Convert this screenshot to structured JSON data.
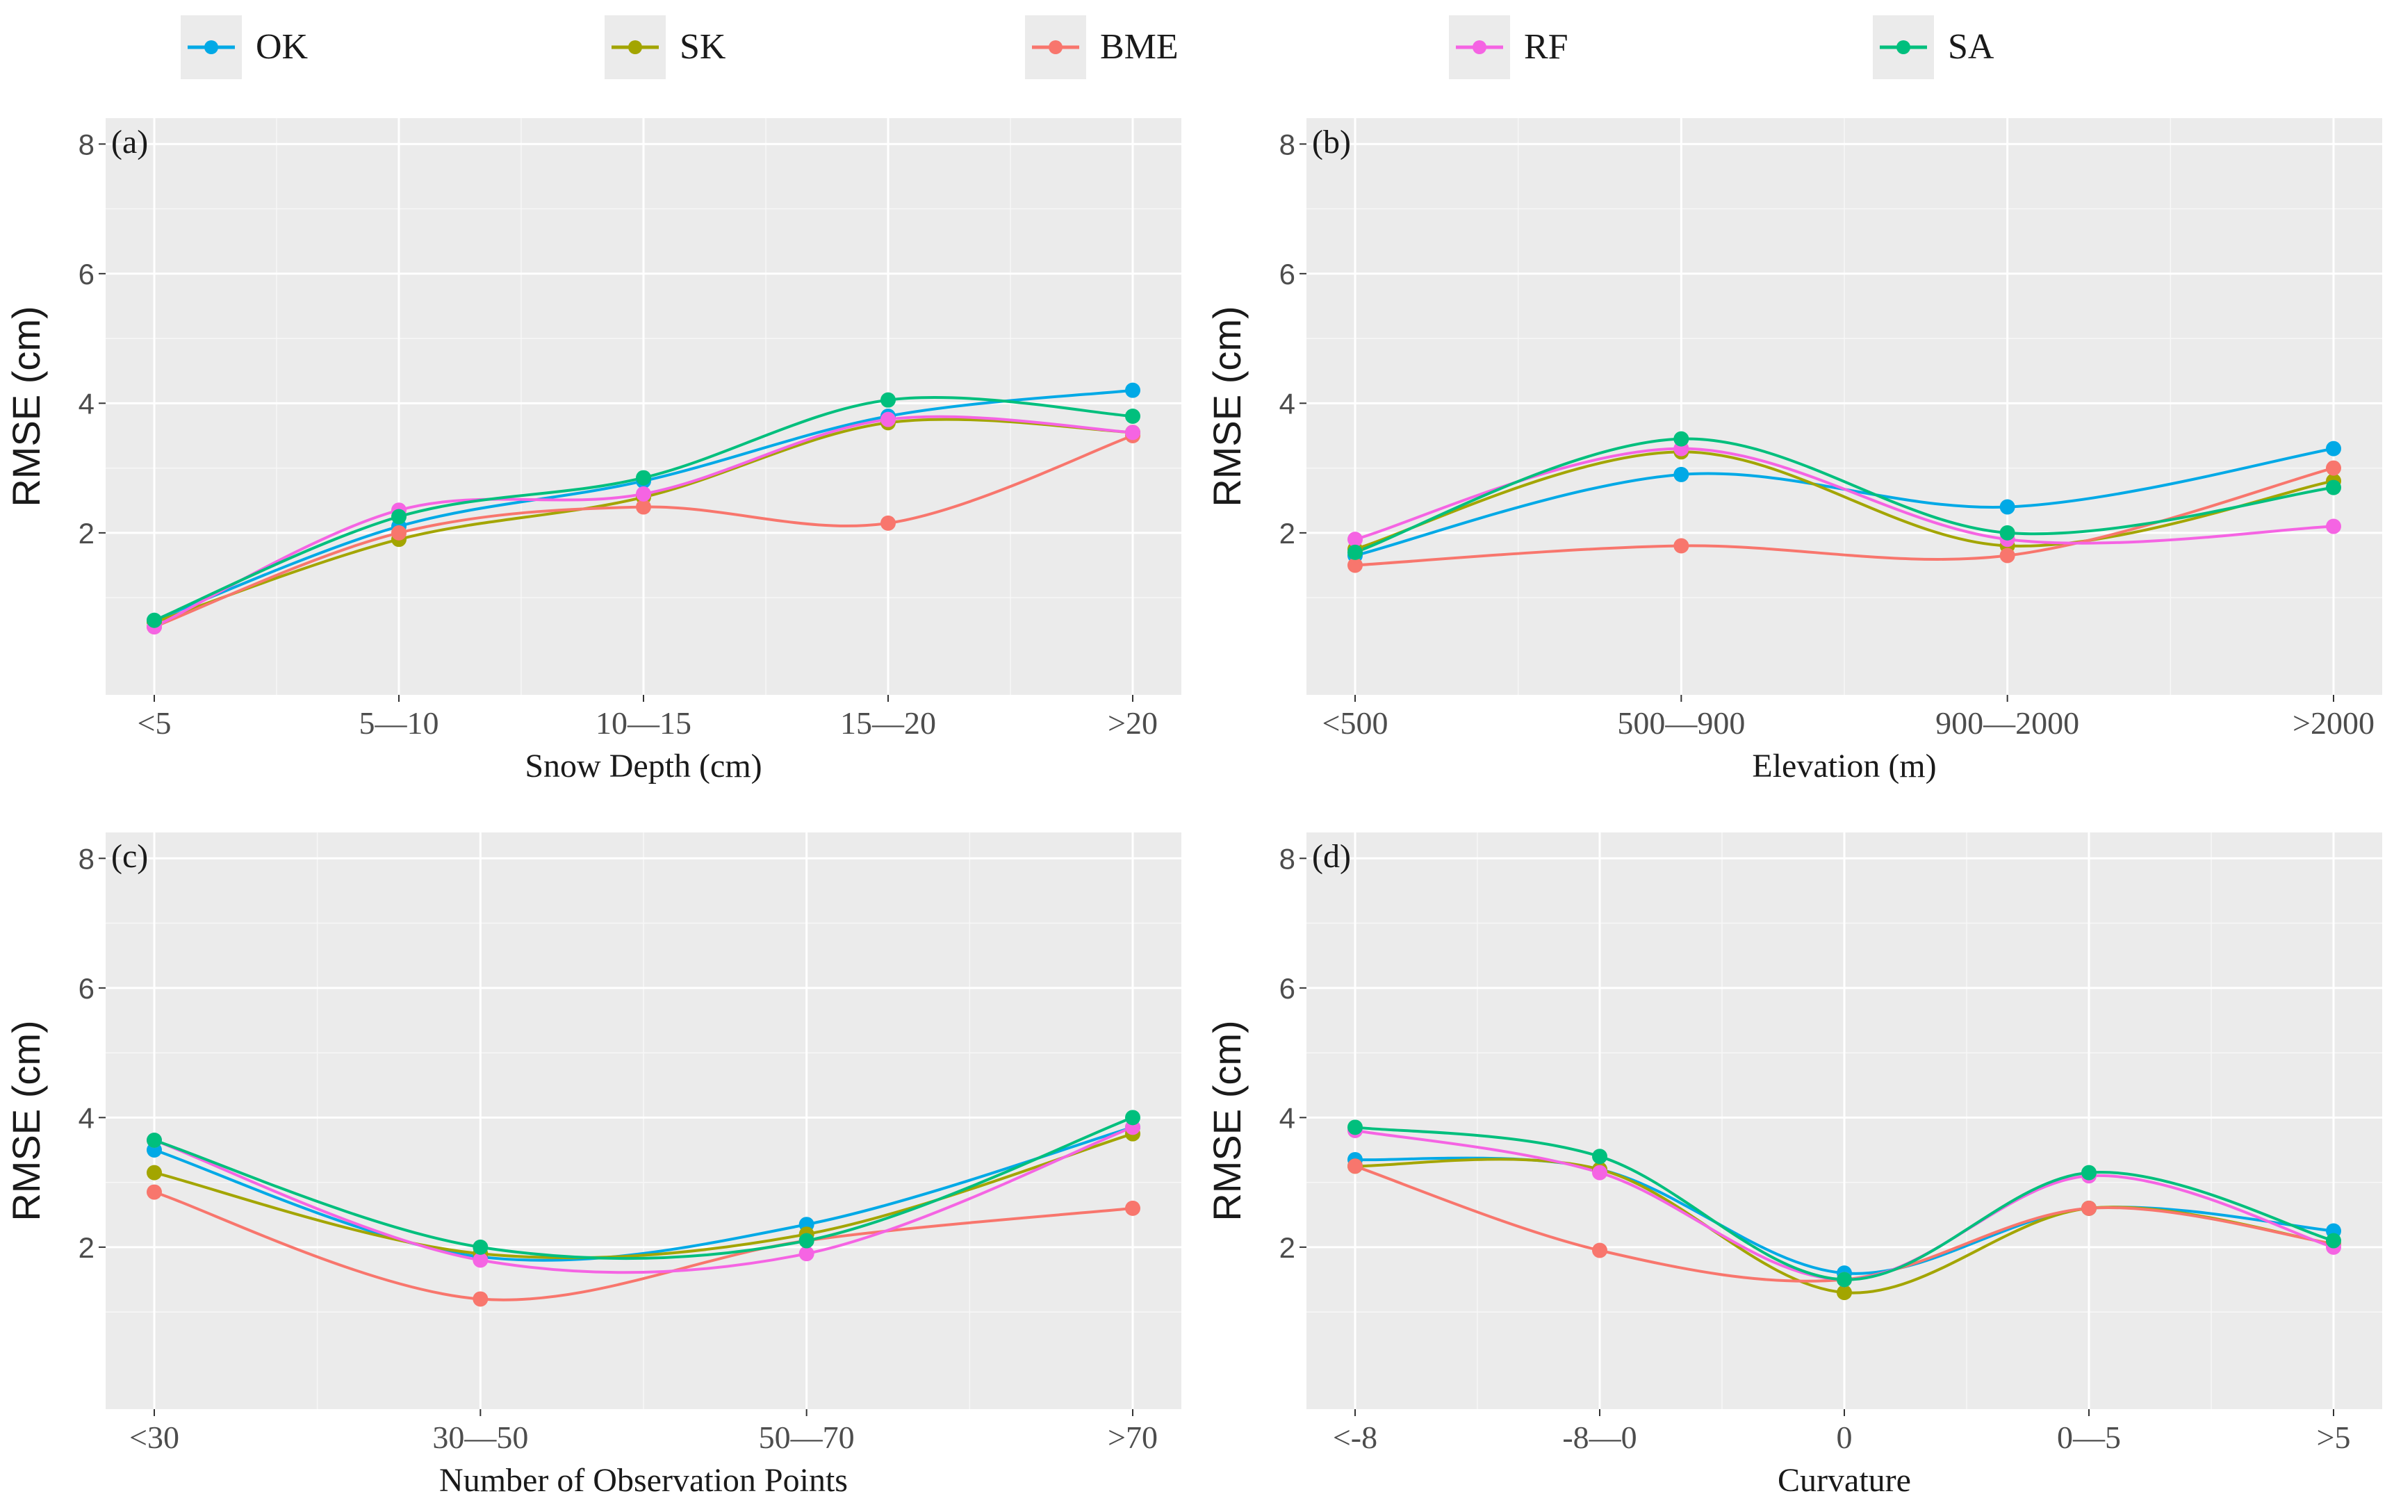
{
  "legend": {
    "entries": [
      {
        "name": "OK",
        "color": "#00a9e6"
      },
      {
        "name": "SK",
        "color": "#a3a500"
      },
      {
        "name": "BME",
        "color": "#f8766d"
      },
      {
        "name": "RF",
        "color": "#f564e3"
      },
      {
        "name": "SA",
        "color": "#00bf7d"
      }
    ]
  },
  "chart_data": [
    {
      "type": "line",
      "panel": "(a)",
      "xlabel": "Snow Depth (cm)",
      "ylabel": "RMSE (cm)",
      "categories": [
        "<5",
        "5—10",
        "10—15",
        "15—20",
        ">20"
      ],
      "ylim": [
        -0.5,
        8.4
      ],
      "yticks": [
        2,
        4,
        6,
        8
      ],
      "grid": true,
      "series": [
        {
          "name": "OK",
          "values": [
            0.65,
            2.1,
            2.8,
            3.8,
            4.2
          ]
        },
        {
          "name": "SK",
          "values": [
            0.62,
            1.9,
            2.55,
            3.7,
            3.55
          ]
        },
        {
          "name": "BME",
          "values": [
            0.55,
            2.0,
            2.4,
            2.15,
            3.5
          ]
        },
        {
          "name": "RF",
          "values": [
            0.55,
            2.35,
            2.6,
            3.75,
            3.55
          ]
        },
        {
          "name": "SA",
          "values": [
            0.65,
            2.25,
            2.85,
            4.05,
            3.8
          ]
        }
      ]
    },
    {
      "type": "line",
      "panel": "(b)",
      "xlabel": "Elevation (m)",
      "ylabel": "RMSE (cm)",
      "categories": [
        "<500",
        "500—900",
        "900—2000",
        ">2000"
      ],
      "ylim": [
        -0.5,
        8.4
      ],
      "yticks": [
        2,
        4,
        6,
        8
      ],
      "grid": true,
      "series": [
        {
          "name": "OK",
          "values": [
            1.65,
            2.9,
            2.4,
            3.3
          ]
        },
        {
          "name": "SK",
          "values": [
            1.75,
            3.25,
            1.8,
            2.8
          ]
        },
        {
          "name": "BME",
          "values": [
            1.5,
            1.8,
            1.65,
            3.0
          ]
        },
        {
          "name": "RF",
          "values": [
            1.9,
            3.3,
            1.9,
            2.1
          ]
        },
        {
          "name": "SA",
          "values": [
            1.7,
            3.45,
            2.0,
            2.7
          ]
        }
      ]
    },
    {
      "type": "line",
      "panel": "(c)",
      "xlabel": "Number of Observation Points",
      "ylabel": "RMSE (cm)",
      "categories": [
        "<30",
        "30—50",
        "50—70",
        ">70"
      ],
      "ylim": [
        -0.5,
        8.4
      ],
      "yticks": [
        2,
        4,
        6,
        8
      ],
      "grid": true,
      "series": [
        {
          "name": "OK",
          "values": [
            3.5,
            1.85,
            2.35,
            3.85
          ]
        },
        {
          "name": "SK",
          "values": [
            3.15,
            1.9,
            2.2,
            3.75
          ]
        },
        {
          "name": "BME",
          "values": [
            2.85,
            1.2,
            2.1,
            2.6
          ]
        },
        {
          "name": "RF",
          "values": [
            3.65,
            1.8,
            1.9,
            3.85
          ]
        },
        {
          "name": "SA",
          "values": [
            3.65,
            2.0,
            2.1,
            4.0
          ]
        }
      ]
    },
    {
      "type": "line",
      "panel": "(d)",
      "xlabel": "Curvature",
      "ylabel": "RMSE (cm)",
      "categories": [
        "<-8",
        "-8—0",
        "0",
        "0—5",
        ">5"
      ],
      "ylim": [
        -0.5,
        8.4
      ],
      "yticks": [
        2,
        4,
        6,
        8
      ],
      "grid": true,
      "series": [
        {
          "name": "OK",
          "values": [
            3.35,
            3.2,
            1.6,
            2.6,
            2.25
          ]
        },
        {
          "name": "SK",
          "values": [
            3.25,
            3.2,
            1.3,
            2.6,
            2.05
          ]
        },
        {
          "name": "BME",
          "values": [
            3.25,
            1.95,
            1.5,
            2.6,
            2.05
          ]
        },
        {
          "name": "RF",
          "values": [
            3.8,
            3.15,
            1.5,
            3.1,
            2.0
          ]
        },
        {
          "name": "SA",
          "values": [
            3.85,
            3.4,
            1.5,
            3.15,
            2.1
          ]
        }
      ]
    }
  ]
}
